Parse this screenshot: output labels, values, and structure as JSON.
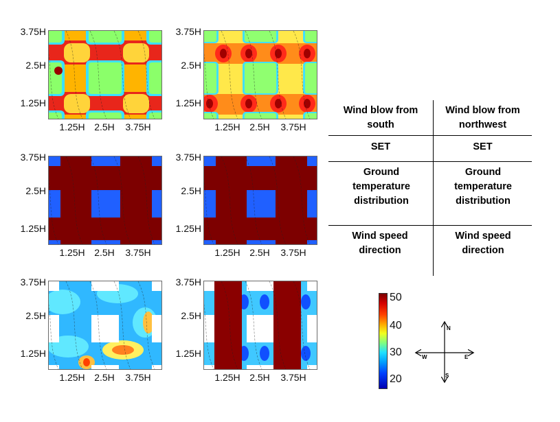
{
  "axis_ticks": {
    "y": [
      "3.75H",
      "2.5H",
      "1.25H"
    ],
    "x": [
      "1.25H",
      "2.5H",
      "3.75H"
    ]
  },
  "panels": [
    {
      "row": "SET",
      "wind": "Wind blow from south",
      "colormap": "hot"
    },
    {
      "row": "SET",
      "wind": "Wind blow from northwest",
      "colormap": "warm"
    },
    {
      "row": "Ground temperature distribution",
      "wind": "Wind blow from south",
      "colormap": "hot-bars"
    },
    {
      "row": "Ground temperature distribution",
      "wind": "Wind blow from northwest",
      "colormap": "hot-bars"
    },
    {
      "row": "Wind speed direction",
      "wind": "Wind blow from south",
      "colormap": "cool"
    },
    {
      "row": "Wind speed direction",
      "wind": "Wind blow from northwest",
      "colormap": "cool-vbars"
    }
  ],
  "table": {
    "col1_header": "Wind blow from south",
    "col2_header": "Wind blow from northwest",
    "rows": [
      {
        "col1": "SET",
        "col2": "SET"
      },
      {
        "col1": "Ground temperature distribution",
        "col2": "Ground temperature distribution"
      },
      {
        "col1": "Wind speed direction",
        "col2": "Wind speed direction"
      }
    ]
  },
  "colorbar": {
    "ticks": [
      "50",
      "40",
      "30",
      "20"
    ],
    "range": [
      18,
      50
    ],
    "colors": [
      "#0000b0",
      "#0040ff",
      "#20e0ff",
      "#80ff80",
      "#f0ff20",
      "#ffb000",
      "#ff4000",
      "#7a0000"
    ]
  },
  "compass": {
    "n": "N",
    "s": "S",
    "e": "E",
    "w": "W"
  }
}
